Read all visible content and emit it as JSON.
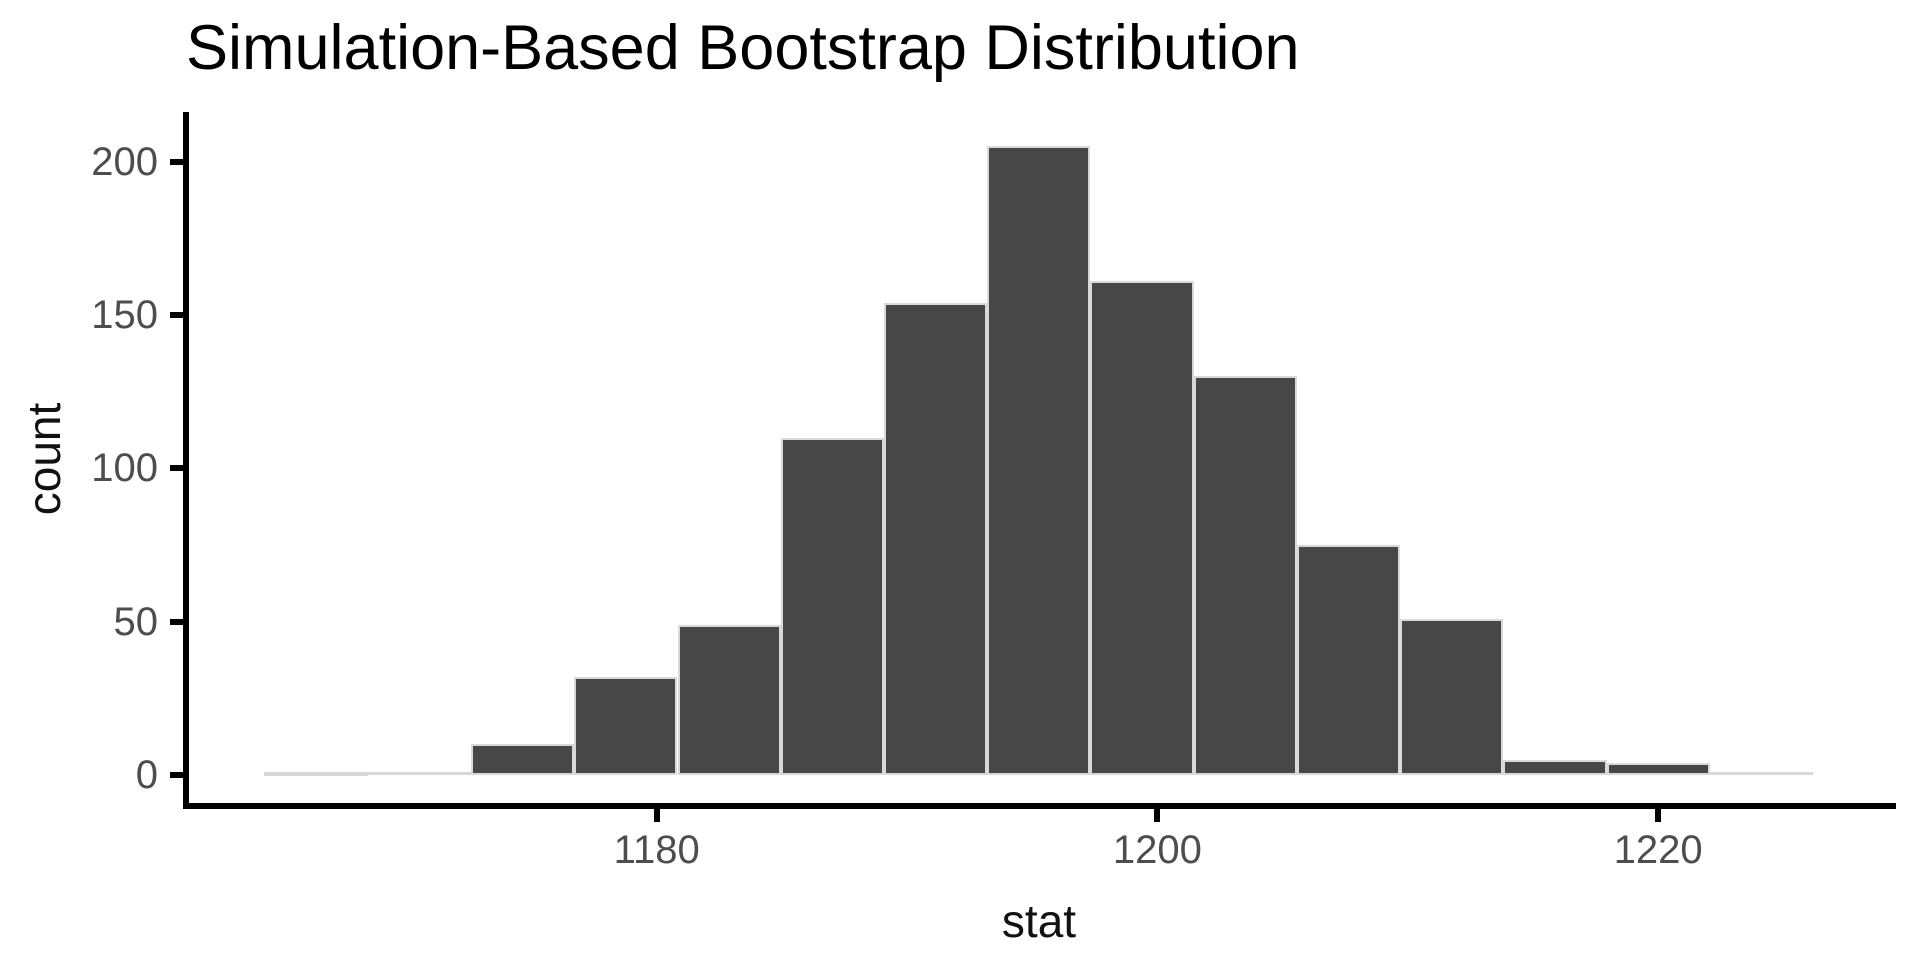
{
  "chart_data": {
    "type": "bar",
    "subtype": "histogram",
    "title": "Simulation-Based Bootstrap Distribution",
    "xlabel": "stat",
    "ylabel": "count",
    "bin_edges": [
      1164.33,
      1168.45,
      1172.58,
      1176.7,
      1180.83,
      1184.95,
      1189.07,
      1193.2,
      1197.32,
      1201.45,
      1205.57,
      1209.69,
      1213.82,
      1217.94,
      1222.07,
      1226.19
    ],
    "counts": [
      1,
      0,
      10,
      32,
      49,
      110,
      154,
      205,
      161,
      130,
      75,
      51,
      5,
      4,
      0
    ],
    "binwidth": 4.12,
    "n_bins": 15,
    "x_ticks": [
      1180,
      1200,
      1220
    ],
    "y_ticks": [
      0,
      50,
      100,
      150,
      200
    ],
    "x_domain": [
      1161.2,
      1229.38
    ],
    "y_domain": [
      -10.1,
      216.2
    ],
    "ylim": [
      0,
      205
    ],
    "grid": false,
    "legend": false,
    "colors": {
      "bar_fill": "#474747",
      "bar_border": "#d9d9d9",
      "zero_bin_line": "#d9d9d9",
      "axis_line": "#000000",
      "tick_mark": "#000000",
      "tick_label": "#4d4d4d",
      "title": "#000000",
      "axis_title": "#111111",
      "background": "#ffffff"
    }
  }
}
